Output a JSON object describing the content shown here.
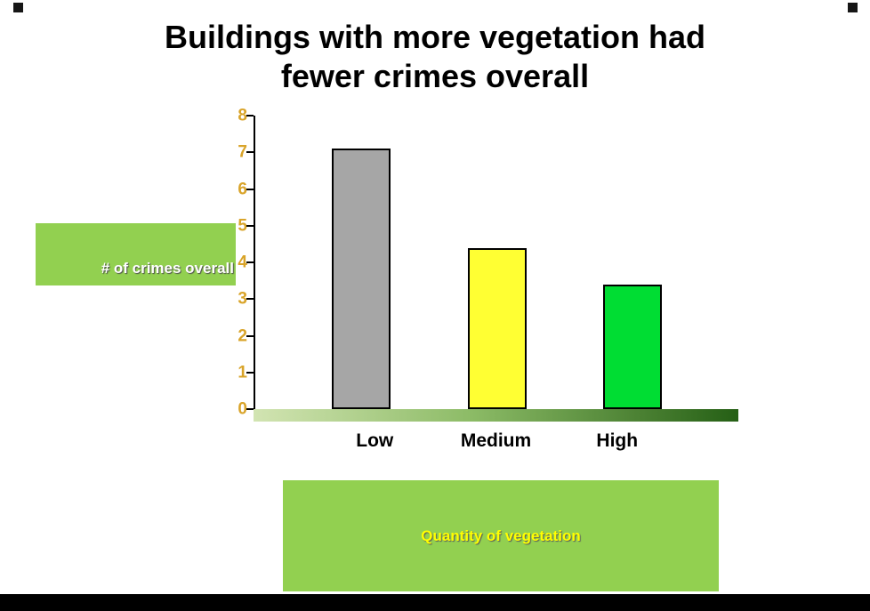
{
  "page": {
    "title_line1": "Buildings with more vegetation had",
    "title_line2": "fewer crimes overall"
  },
  "chart_data": {
    "type": "bar",
    "title": "Buildings with more vegetation had fewer crimes overall",
    "categories": [
      "Low",
      "Medium",
      "High"
    ],
    "values": [
      7.1,
      4.4,
      3.4
    ],
    "bar_colors": [
      "#a6a6a6",
      "#ffff33",
      "#00dd33"
    ],
    "xlabel": "Quantity of vegetation",
    "ylabel": "# of crimes overall",
    "ylim": [
      0,
      8
    ],
    "yticks": [
      0,
      1,
      2,
      3,
      4,
      5,
      6,
      7,
      8
    ],
    "grid": false,
    "legend": "none"
  },
  "colors": {
    "label_box_bg": "#92d050",
    "ylabel_text": "#ffffff",
    "xlabel_text": "#ffff00",
    "ytick_text": "#d9a42a",
    "xtick_text": "#000000",
    "floor_gradient_left": "#d2e4b2",
    "floor_gradient_mid": "#8cbb66",
    "floor_gradient_right": "#255f15",
    "footer_bar": "#000000",
    "corner_square": "#161616"
  }
}
